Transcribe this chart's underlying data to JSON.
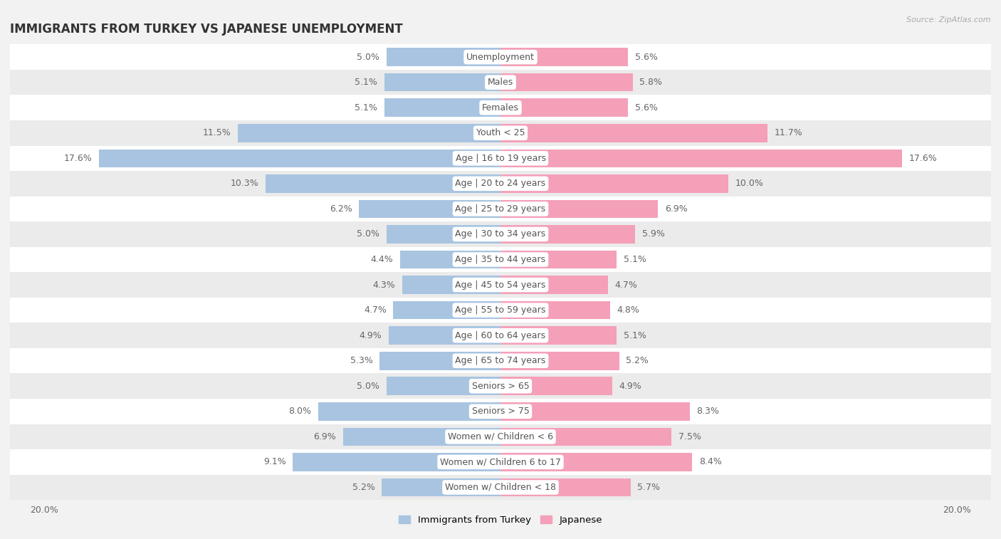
{
  "title": "IMMIGRANTS FROM TURKEY VS JAPANESE UNEMPLOYMENT",
  "source": "Source: ZipAtlas.com",
  "categories": [
    "Unemployment",
    "Males",
    "Females",
    "Youth < 25",
    "Age | 16 to 19 years",
    "Age | 20 to 24 years",
    "Age | 25 to 29 years",
    "Age | 30 to 34 years",
    "Age | 35 to 44 years",
    "Age | 45 to 54 years",
    "Age | 55 to 59 years",
    "Age | 60 to 64 years",
    "Age | 65 to 74 years",
    "Seniors > 65",
    "Seniors > 75",
    "Women w/ Children < 6",
    "Women w/ Children 6 to 17",
    "Women w/ Children < 18"
  ],
  "turkey_values": [
    5.0,
    5.1,
    5.1,
    11.5,
    17.6,
    10.3,
    6.2,
    5.0,
    4.4,
    4.3,
    4.7,
    4.9,
    5.3,
    5.0,
    8.0,
    6.9,
    9.1,
    5.2
  ],
  "japan_values": [
    5.6,
    5.8,
    5.6,
    11.7,
    17.6,
    10.0,
    6.9,
    5.9,
    5.1,
    4.7,
    4.8,
    5.1,
    5.2,
    4.9,
    8.3,
    7.5,
    8.4,
    5.7
  ],
  "turkey_color": "#a8c4e0",
  "japan_color": "#f4a0b8",
  "bar_height": 0.72,
  "background_color": "#f2f2f2",
  "row_color_odd": "#ffffff",
  "row_color_even": "#ebebeb",
  "xlim": 20.0,
  "title_fontsize": 12,
  "label_fontsize": 9,
  "value_fontsize": 9,
  "axis_label_fontsize": 9,
  "label_pill_color": "#ffffff",
  "label_text_color": "#555555",
  "value_text_color": "#666666"
}
